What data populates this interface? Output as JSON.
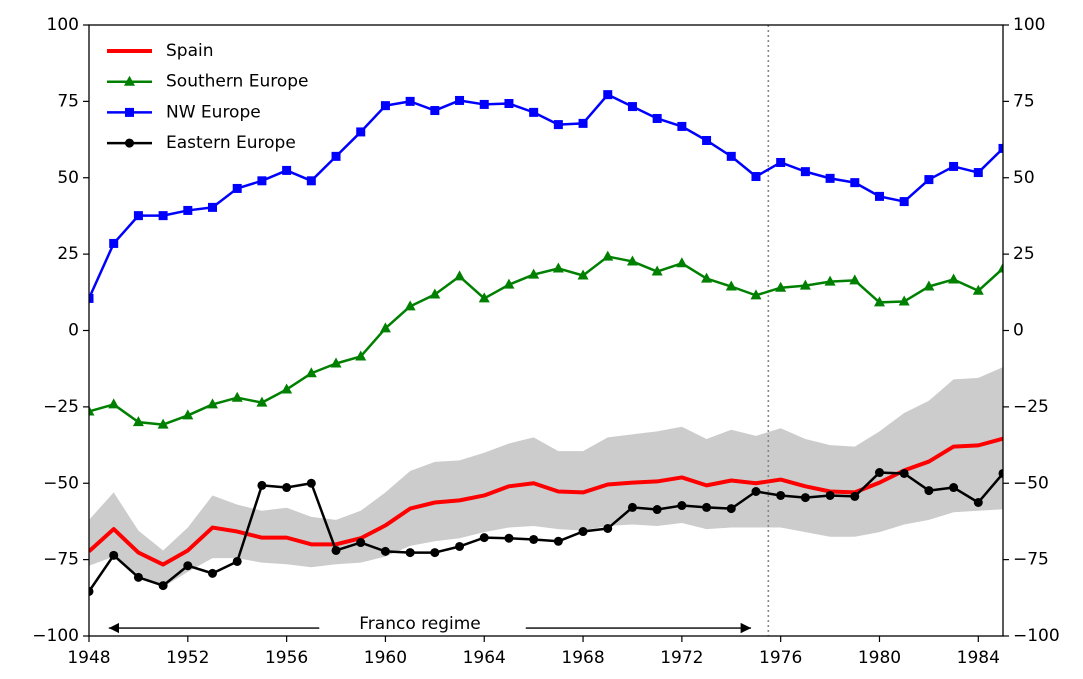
{
  "chart_data": {
    "type": "line",
    "x": [
      1948,
      1949,
      1950,
      1951,
      1952,
      1953,
      1954,
      1955,
      1956,
      1957,
      1958,
      1959,
      1960,
      1961,
      1962,
      1963,
      1964,
      1965,
      1966,
      1967,
      1968,
      1969,
      1970,
      1971,
      1972,
      1973,
      1974,
      1975,
      1976,
      1977,
      1978,
      1979,
      1980,
      1981,
      1982,
      1983,
      1984,
      1985
    ],
    "series": [
      {
        "name": "Spain",
        "color": "#ff0000",
        "marker": "none",
        "width": 4,
        "values": [
          -72.3,
          -65,
          -72.7,
          -76.6,
          -72,
          -64.5,
          -65.8,
          -67.8,
          -67.8,
          -70,
          -70,
          -68,
          -63.8,
          -58.3,
          -56.3,
          -55.6,
          -54,
          -51,
          -50,
          -52.7,
          -53,
          -50.4,
          -49.8,
          -49.4,
          -48.1,
          -50.7,
          -49.1,
          -50,
          -48.8,
          -51,
          -52.7,
          -53,
          -49.8,
          -45.8,
          -42.9,
          -38,
          -37.6,
          -35.4
        ]
      },
      {
        "name": "Southern Europe",
        "color": "#008000",
        "marker": "triangle",
        "width": 2.5,
        "values": [
          -26.5,
          -24.2,
          -30,
          -30.8,
          -27.8,
          -24.2,
          -22,
          -23.6,
          -19.3,
          -14,
          -10.8,
          -8.5,
          0.7,
          7.9,
          11.8,
          17.7,
          10.5,
          15,
          18.3,
          20.3,
          18,
          24.2,
          22.6,
          19.3,
          22,
          17,
          14.4,
          11.5,
          14,
          14.7,
          16,
          16.4,
          9.2,
          9.5,
          14.4,
          16.7,
          13,
          20.3
        ]
      },
      {
        "name": "NW Europe",
        "color": "#0000ff",
        "marker": "square",
        "width": 2.5,
        "values": [
          10.5,
          28.5,
          37.6,
          37.6,
          39.3,
          40.3,
          46.5,
          49,
          52.4,
          49,
          57,
          65,
          73.6,
          75,
          72,
          75.3,
          74,
          74.3,
          71.4,
          67.4,
          67.8,
          77.2,
          73.3,
          69.4,
          66.8,
          62.2,
          57,
          50.4,
          55,
          52,
          49.8,
          48.4,
          43.9,
          42.2,
          49.4,
          53.7,
          51.7,
          59.6
        ]
      },
      {
        "name": "Eastern Europe",
        "color": "#000000",
        "marker": "circle",
        "width": 2.5,
        "values": [
          -85.4,
          -73.6,
          -80.8,
          -83.5,
          -77,
          -79.5,
          -75.6,
          -50.7,
          -51.4,
          -50,
          -72,
          -69.4,
          -72.3,
          -72.7,
          -72.7,
          -70.7,
          -67.8,
          -68,
          -68.4,
          -69,
          -65.8,
          -64.8,
          -57.9,
          -58.6,
          -57.3,
          -57.9,
          -58.3,
          -52.7,
          -54,
          -54.7,
          -54,
          -54.3,
          -46.5,
          -46.8,
          -52.4,
          -51.4,
          -56.3,
          -46.8
        ]
      }
    ],
    "band": {
      "color": "#cccccc",
      "upper": [
        -62,
        -53,
        -65.5,
        -72,
        -64.5,
        -54,
        -57,
        -59,
        -58,
        -61,
        -62,
        -59,
        -53,
        -46,
        -43,
        -42.5,
        -40,
        -37,
        -35,
        -39.5,
        -39.5,
        -35,
        -34,
        -33,
        -31.5,
        -35.5,
        -32.5,
        -34.5,
        -32,
        -35.5,
        -37.5,
        -38,
        -33,
        -27,
        -23,
        -16,
        -15.5,
        -12
      ],
      "lower": [
        -77,
        -74,
        -80,
        -84,
        -79,
        -74.5,
        -74.5,
        -76,
        -76.5,
        -77.5,
        -76.5,
        -76,
        -74,
        -70.5,
        -69,
        -68,
        -66,
        -64.5,
        -64,
        -65,
        -65.5,
        -64,
        -63.5,
        -64,
        -63,
        -65,
        -64.5,
        -64.5,
        -64.5,
        -66,
        -67.5,
        -67.5,
        -66,
        -63.5,
        -62,
        -59.5,
        -59,
        -58.5
      ]
    },
    "vline": 1975.5,
    "annotation": {
      "text": "Franco regime",
      "x1": 1948.8,
      "x2": 1974.8,
      "xtext": 1961.4,
      "y": -97.4
    },
    "xlim": [
      1948,
      1985
    ],
    "xticks": [
      1948,
      1952,
      1956,
      1960,
      1964,
      1968,
      1972,
      1976,
      1980,
      1984
    ],
    "ylim": [
      -100,
      100
    ],
    "yticks": [
      {
        "value": -100,
        "label": "−100"
      },
      {
        "value": -75,
        "label": "−75"
      },
      {
        "value": -50,
        "label": "−50"
      },
      {
        "value": -25,
        "label": "−25"
      },
      0,
      25,
      50,
      75,
      100
    ],
    "y2lim": [
      -100,
      100
    ],
    "y2ticks": [
      {
        "value": -100,
        "label": "−100"
      },
      {
        "value": -75,
        "label": "−75"
      },
      {
        "value": -50,
        "label": "−50"
      },
      {
        "value": -25,
        "label": "−25"
      },
      0,
      25,
      50,
      75,
      100
    ],
    "legend": "upper-left",
    "grid": false
  }
}
